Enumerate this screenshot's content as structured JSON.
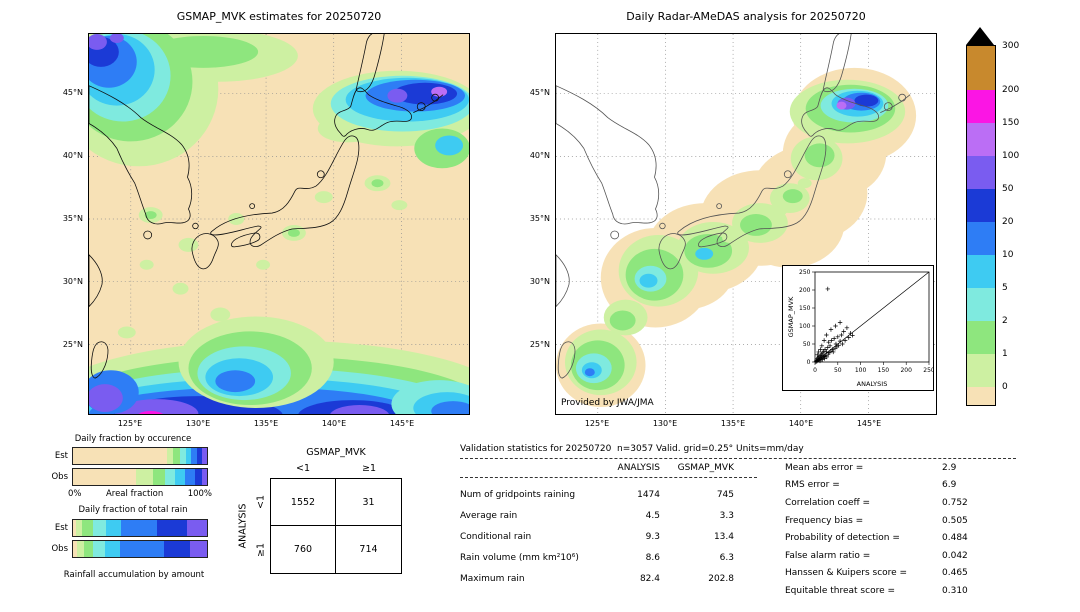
{
  "palette": {
    "cream": "#f7e1b6",
    "palegreen": "#cdf0a2",
    "green": "#8ee67e",
    "ltcyan": "#7feadf",
    "cyan": "#3ecbf2",
    "blue": "#2e7df5",
    "dkblue": "#1b3ad6",
    "purple": "#7a5cf0",
    "violet": "#bb6ef5",
    "magenta": "#fb15e4",
    "brown": "#c8892d"
  },
  "maps": {
    "left": {
      "title": "GSMAP_MVK estimates for 20250720",
      "lat_ticks": [
        "45°N",
        "40°N",
        "35°N",
        "30°N",
        "25°N"
      ],
      "lon_ticks": [
        "125°E",
        "130°E",
        "135°E",
        "140°E",
        "145°E"
      ]
    },
    "right": {
      "title": "Daily Radar-AMeDAS analysis for 20250720",
      "lat_ticks": [
        "45°N",
        "40°N",
        "35°N",
        "30°N",
        "25°N"
      ],
      "lon_ticks": [
        "125°E",
        "130°E",
        "135°E",
        "140°E",
        "145°E"
      ],
      "credit": "Provided by JWA/JMA"
    }
  },
  "colorbar": {
    "labels": [
      "300",
      "200",
      "150",
      "100",
      "50",
      "20",
      "10",
      "5",
      "2",
      "1",
      "0"
    ],
    "colors_top_to_bottom": [
      "brown",
      "magenta",
      "violet",
      "purple",
      "dkblue",
      "blue",
      "cyan",
      "ltcyan",
      "green",
      "palegreen",
      "cream"
    ]
  },
  "chart_data": [
    {
      "name": "scatter_inset",
      "type": "scatter",
      "xlabel": "ANALYSIS",
      "ylabel": "GSMAP_MVK",
      "xlim": [
        0,
        250
      ],
      "ylim": [
        0,
        250
      ],
      "ticks": [
        0,
        50,
        100,
        150,
        200,
        250
      ],
      "marker": "+",
      "diagonal_line": true,
      "points": [
        [
          2,
          1
        ],
        [
          3,
          5
        ],
        [
          4,
          2
        ],
        [
          5,
          9
        ],
        [
          6,
          4
        ],
        [
          7,
          12
        ],
        [
          8,
          6
        ],
        [
          9,
          15
        ],
        [
          10,
          8
        ],
        [
          11,
          3
        ],
        [
          12,
          18
        ],
        [
          13,
          10
        ],
        [
          14,
          22
        ],
        [
          15,
          12
        ],
        [
          16,
          7
        ],
        [
          17,
          25
        ],
        [
          18,
          14
        ],
        [
          19,
          30
        ],
        [
          20,
          16
        ],
        [
          21,
          10
        ],
        [
          22,
          35
        ],
        [
          23,
          18
        ],
        [
          25,
          28
        ],
        [
          26,
          14
        ],
        [
          28,
          40
        ],
        [
          29,
          22
        ],
        [
          30,
          55
        ],
        [
          31,
          26
        ],
        [
          33,
          45
        ],
        [
          35,
          30
        ],
        [
          36,
          60
        ],
        [
          38,
          35
        ],
        [
          40,
          28
        ],
        [
          42,
          65
        ],
        [
          44,
          38
        ],
        [
          46,
          50
        ],
        [
          48,
          42
        ],
        [
          50,
          70
        ],
        [
          52,
          46
        ],
        [
          55,
          58
        ],
        [
          58,
          75
        ],
        [
          60,
          50
        ],
        [
          63,
          85
        ],
        [
          66,
          60
        ],
        [
          70,
          95
        ],
        [
          74,
          68
        ],
        [
          78,
          80
        ],
        [
          82,
          74
        ],
        [
          28,
          203
        ],
        [
          12,
          35
        ],
        [
          8,
          28
        ],
        [
          5,
          20
        ],
        [
          35,
          90
        ],
        [
          20,
          60
        ],
        [
          15,
          45
        ],
        [
          45,
          100
        ],
        [
          55,
          110
        ],
        [
          25,
          75
        ]
      ]
    },
    {
      "name": "occurrence_fractions",
      "type": "bar",
      "stacked": true,
      "orientation": "horizontal",
      "title": "Daily fraction by occurence",
      "xlabel": "Areal fraction",
      "x_axis_labels": [
        "0%",
        "100%"
      ],
      "rows": [
        {
          "label": "Est",
          "segments": [
            [
              "cream",
              0.7
            ],
            [
              "palegreen",
              0.05
            ],
            [
              "green",
              0.045
            ],
            [
              "ltcyan",
              0.045
            ],
            [
              "cyan",
              0.04
            ],
            [
              "blue",
              0.045
            ],
            [
              "dkblue",
              0.04
            ],
            [
              "purple",
              0.035
            ]
          ]
        },
        {
          "label": "Obs",
          "segments": [
            [
              "cream",
              0.47
            ],
            [
              "palegreen",
              0.125
            ],
            [
              "green",
              0.09
            ],
            [
              "ltcyan",
              0.08
            ],
            [
              "cyan",
              0.07
            ],
            [
              "blue",
              0.075
            ],
            [
              "dkblue",
              0.05
            ],
            [
              "purple",
              0.04
            ]
          ]
        }
      ]
    },
    {
      "name": "total_rain_fractions",
      "type": "bar",
      "stacked": true,
      "orientation": "horizontal",
      "title": "Daily fraction of total rain",
      "caption": "Rainfall accumulation by amount",
      "rows": [
        {
          "label": "Est",
          "segments": [
            [
              "cream",
              0.02
            ],
            [
              "palegreen",
              0.05
            ],
            [
              "green",
              0.08
            ],
            [
              "ltcyan",
              0.1
            ],
            [
              "cyan",
              0.11
            ],
            [
              "blue",
              0.27
            ],
            [
              "dkblue",
              0.22
            ],
            [
              "purple",
              0.15
            ]
          ]
        },
        {
          "label": "Obs",
          "segments": [
            [
              "cream",
              0.03
            ],
            [
              "palegreen",
              0.05
            ],
            [
              "green",
              0.07
            ],
            [
              "ltcyan",
              0.09
            ],
            [
              "cyan",
              0.11
            ],
            [
              "blue",
              0.33
            ],
            [
              "dkblue",
              0.19
            ],
            [
              "purple",
              0.13
            ]
          ]
        }
      ]
    },
    {
      "name": "contingency_table",
      "type": "table",
      "title": "GSMAP_MVK",
      "row_axis_label": "ANALYSIS",
      "col_labels": [
        "<1",
        "≥1"
      ],
      "row_labels": [
        "<1",
        "≥1"
      ],
      "values": [
        [
          1552,
          31
        ],
        [
          760,
          714
        ]
      ]
    },
    {
      "name": "validation_statistics",
      "type": "table",
      "title": "Validation statistics for 20250720  n=3057 Valid. grid=0.25° Units=mm/day",
      "columns": [
        "ANALYSIS",
        "GSMAP_MVK"
      ],
      "rows": [
        {
          "label": "Num of gridpoints raining",
          "values": [
            "1474",
            "745"
          ]
        },
        {
          "label": "Average rain",
          "values": [
            "4.5",
            "3.3"
          ]
        },
        {
          "label": "Conditional rain",
          "values": [
            "9.3",
            "13.4"
          ]
        },
        {
          "label": "Rain volume (mm km²10⁶)",
          "values": [
            "8.6",
            "6.3"
          ]
        },
        {
          "label": "Maximum rain",
          "values": [
            "82.4",
            "202.8"
          ]
        }
      ],
      "scores": [
        {
          "label": "Mean abs error =",
          "value": "2.9"
        },
        {
          "label": "RMS error =",
          "value": "6.9"
        },
        {
          "label": "Correlation coeff =",
          "value": "0.752"
        },
        {
          "label": "Frequency bias =",
          "value": "0.505"
        },
        {
          "label": "Probability of detection =",
          "value": "0.484"
        },
        {
          "label": "False alarm ratio =",
          "value": "0.042"
        },
        {
          "label": "Hanssen & Kuipers score =",
          "value": "0.465"
        },
        {
          "label": "Equitable threat score =",
          "value": "0.310"
        }
      ]
    }
  ]
}
